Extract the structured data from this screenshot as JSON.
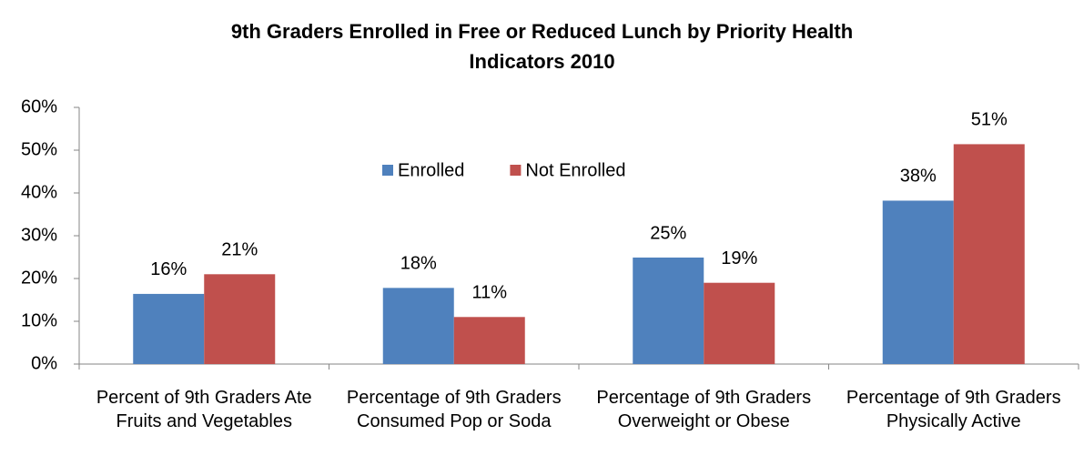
{
  "chart_data": {
    "type": "bar",
    "title": "9th Graders Enrolled in Free or Reduced Lunch by Priority Health Indicators 2010",
    "categories": [
      "Percent of 9th Graders Ate Fruits and Vegetables",
      "Percentage of 9th Graders Consumed Pop or Soda",
      "Percentage of 9th Graders Overweight or Obese",
      "Percentage of 9th Graders Physically Active"
    ],
    "series": [
      {
        "name": "Enrolled",
        "color": "#4f81bd",
        "values": [
          16.4,
          17.8,
          24.9,
          38.2
        ],
        "value_labels": [
          "16%",
          "18%",
          "25%",
          "38%"
        ]
      },
      {
        "name": "Not Enrolled",
        "color": "#c0504d",
        "values": [
          21,
          11,
          19,
          51.4
        ],
        "value_labels": [
          "21%",
          "11%",
          "19%",
          "51%"
        ]
      }
    ],
    "ylim": [
      0,
      60
    ],
    "yticks": [
      {
        "value": 0,
        "label": "0%"
      },
      {
        "value": 10,
        "label": "10%"
      },
      {
        "value": 20,
        "label": "20%"
      },
      {
        "value": 30,
        "label": "30%"
      },
      {
        "value": 40,
        "label": "40%"
      },
      {
        "value": 50,
        "label": "50%"
      },
      {
        "value": 60,
        "label": "60%"
      }
    ],
    "grid": false,
    "legend": "top"
  }
}
